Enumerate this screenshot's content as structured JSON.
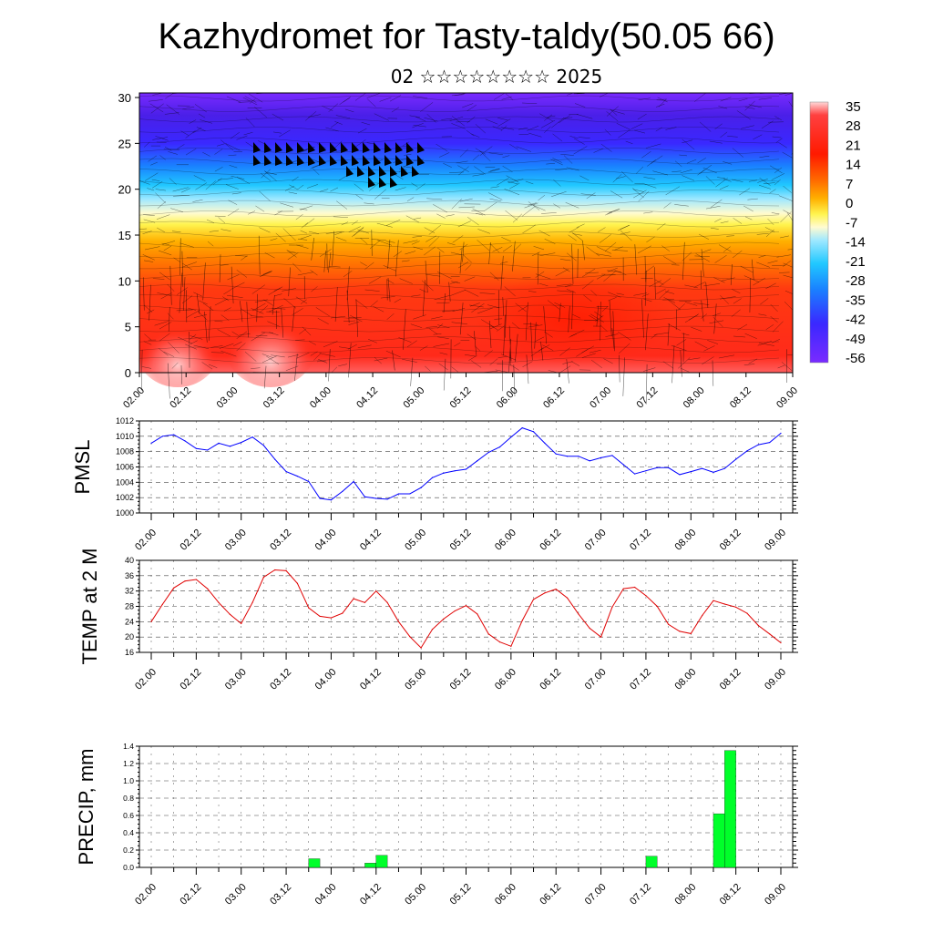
{
  "title": "Kazhydromet for Tasty-taldy(50.05 66)",
  "subtitle": "02 ☆☆☆☆☆☆☆☆ 2025",
  "time_labels": [
    "02.00",
    "02.12",
    "03.00",
    "03.12",
    "04.00",
    "04.12",
    "05.00",
    "05.12",
    "06.00",
    "06.12",
    "07.00",
    "07.12",
    "08.00",
    "08.12",
    "09.00"
  ],
  "chart_data": [
    {
      "type": "heatmap",
      "name": "cross-section",
      "x": [
        "02.00",
        "02.12",
        "03.00",
        "03.12",
        "04.00",
        "04.12",
        "05.00",
        "05.12",
        "06.00",
        "06.12",
        "07.00",
        "07.12",
        "08.00",
        "08.12",
        "09.00"
      ],
      "yticks": [
        0,
        5,
        10,
        15,
        20,
        25,
        30
      ],
      "ylim": [
        0,
        30.5
      ],
      "colorbar_labels": [
        35,
        28,
        21,
        14,
        7,
        0,
        -7,
        -14,
        -21,
        -28,
        -35,
        -42,
        -49,
        -56
      ],
      "colors": {
        "hot": "#ff2a1a",
        "warm": "#ff8c00",
        "yellow": "#fff44f",
        "cyan": "#20c8ff",
        "blue": "#3a28ff",
        "violet": "#7a2bff"
      }
    },
    {
      "type": "line",
      "name": "PMSL",
      "ylabel": "PMSL",
      "yticks": [
        1000,
        1002,
        1004,
        1006,
        1008,
        1010,
        1012
      ],
      "ylim": [
        1000,
        1012
      ],
      "color": "#0000ff",
      "t": [
        0,
        3,
        6,
        9,
        12,
        15,
        18,
        21,
        24,
        27,
        30,
        33,
        36,
        39,
        42,
        45,
        48,
        51,
        54,
        57,
        60,
        63,
        66,
        69,
        72,
        75,
        78,
        81,
        84,
        87,
        90,
        93,
        96,
        99,
        102,
        105,
        108,
        111,
        114,
        117,
        120,
        123,
        126,
        129,
        132,
        135,
        138,
        141,
        144,
        147,
        150,
        153,
        156,
        159,
        162,
        165,
        168
      ],
      "values": [
        1009.1,
        1010.0,
        1010.2,
        1009.4,
        1008.4,
        1008.2,
        1009.1,
        1008.7,
        1009.2,
        1009.9,
        1008.8,
        1007.0,
        1005.4,
        1004.8,
        1004.1,
        1001.9,
        1001.7,
        1002.8,
        1004.1,
        1002.1,
        1001.9,
        1001.8,
        1002.5,
        1002.5,
        1003.3,
        1004.6,
        1005.2,
        1005.5,
        1005.7,
        1006.8,
        1007.9,
        1008.6,
        1009.9,
        1011.1,
        1010.6,
        1009.1,
        1007.7,
        1007.4,
        1007.4,
        1006.8,
        1007.2,
        1007.5,
        1006.3,
        1005.1,
        1005.5,
        1005.9,
        1005.9,
        1005.0,
        1005.4,
        1005.8,
        1005.3,
        1005.8,
        1007.0,
        1008.1,
        1008.9,
        1009.2,
        1010.4
      ]
    },
    {
      "type": "line",
      "name": "TEMP at 2 M",
      "ylabel": "TEMP at 2 M",
      "yticks": [
        16,
        20,
        24,
        28,
        32,
        36,
        40
      ],
      "ylim": [
        16,
        40
      ],
      "color": "#e00000",
      "t": [
        0,
        3,
        6,
        9,
        12,
        15,
        18,
        21,
        24,
        27,
        30,
        33,
        36,
        39,
        42,
        45,
        48,
        51,
        54,
        57,
        60,
        63,
        66,
        69,
        72,
        75,
        78,
        81,
        84,
        87,
        90,
        93,
        96,
        99,
        102,
        105,
        108,
        111,
        114,
        117,
        120,
        123,
        126,
        129,
        132,
        135,
        138,
        141,
        144,
        147,
        150,
        153,
        156,
        159,
        162,
        165,
        168
      ],
      "values": [
        24.0,
        28.5,
        32.8,
        34.6,
        35.0,
        32.6,
        29.0,
        25.9,
        23.5,
        29.0,
        35.6,
        37.5,
        37.3,
        34.0,
        27.6,
        25.4,
        25.0,
        26.2,
        30.0,
        29.0,
        32.0,
        29.0,
        24.0,
        20.1,
        17.2,
        22.0,
        24.7,
        26.8,
        28.2,
        26.0,
        20.8,
        18.7,
        17.6,
        24.3,
        29.8,
        31.5,
        32.5,
        30.2,
        26.0,
        22.3,
        20.0,
        27.8,
        32.6,
        33.0,
        30.8,
        28.0,
        23.3,
        21.5,
        20.9,
        25.6,
        29.5,
        28.6,
        27.8,
        26.2,
        23.0,
        20.8,
        18.5
      ]
    },
    {
      "type": "bar",
      "name": "PRECIP, mm",
      "ylabel": "PRECIP, mm",
      "yticks": [
        0.0,
        0.2,
        0.4,
        0.6,
        0.8,
        1.0,
        1.2,
        1.4
      ],
      "ylim": [
        0,
        1.4
      ],
      "color": "#00ff2a",
      "bar_width_hours": 3,
      "bars": [
        {
          "t": 42,
          "value": 0.1
        },
        {
          "t": 57,
          "value": 0.05
        },
        {
          "t": 60,
          "value": 0.14
        },
        {
          "t": 132,
          "value": 0.13
        },
        {
          "t": 150,
          "value": 0.62
        },
        {
          "t": 153,
          "value": 1.35
        }
      ]
    }
  ]
}
